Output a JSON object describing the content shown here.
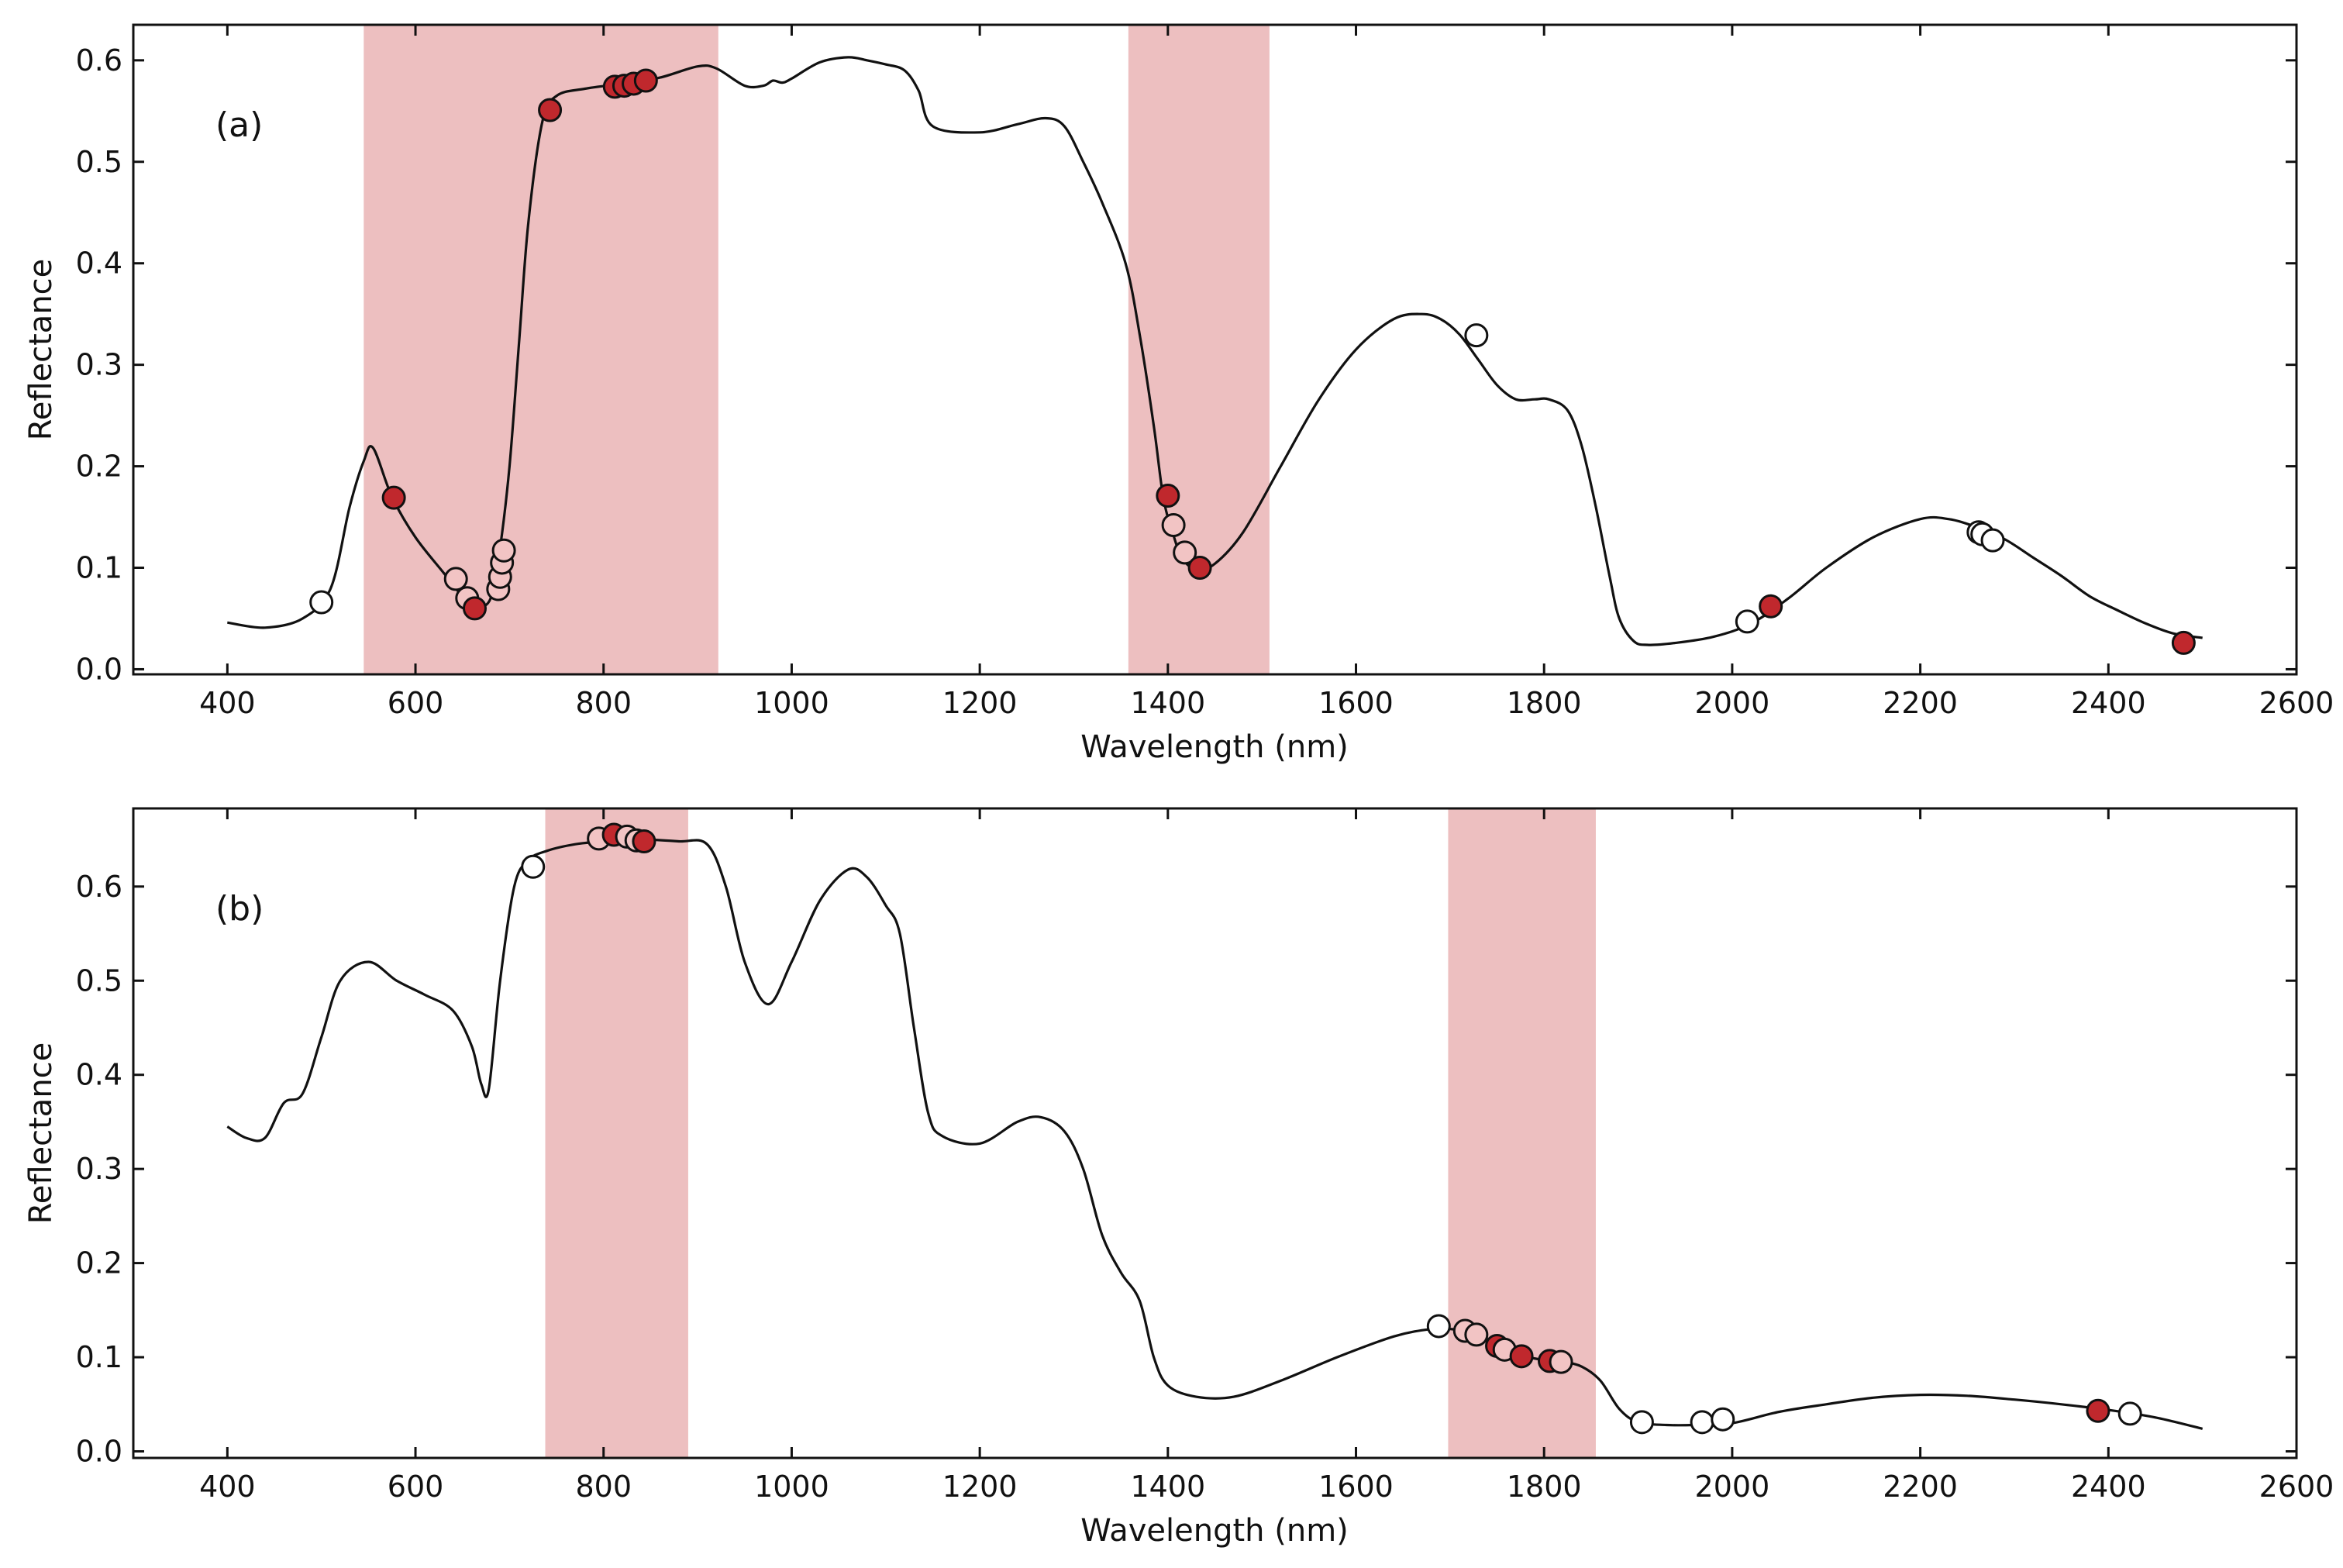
{
  "chart_data": [
    {
      "type": "line",
      "panel_label": "(a)",
      "xlabel": "Wavelength (nm)",
      "ylabel": "Reflectance",
      "xlim": [
        300,
        2600
      ],
      "ylim": [
        -0.005,
        0.635
      ],
      "xticks": [
        400,
        600,
        800,
        1000,
        1200,
        1400,
        1600,
        1800,
        2000,
        2200,
        2400,
        2600
      ],
      "yticks": [
        0.0,
        0.1,
        0.2,
        0.3,
        0.4,
        0.5,
        0.6
      ],
      "xtick_labels": [
        "400",
        "600",
        "800",
        "1000",
        "1200",
        "1400",
        "1600",
        "1800",
        "2000",
        "2200",
        "2400",
        "2600"
      ],
      "ytick_labels": [
        "0.0",
        "0.1",
        "0.2",
        "0.3",
        "0.4",
        "0.5",
        "0.6"
      ],
      "band_color": "#edbfc0",
      "highlight_bands": [
        [
          545,
          922
        ],
        [
          1358,
          1508
        ]
      ],
      "colors": {
        "dark": "#c0282d",
        "light": "#f2c4c4",
        "white": "#ffffff",
        "line": "#111111"
      },
      "series": [
        {
          "name": "spectrum",
          "x": [
            400,
            440,
            480,
            510,
            530,
            545,
            555,
            575,
            600,
            630,
            650,
            665,
            680,
            690,
            700,
            710,
            720,
            735,
            750,
            780,
            820,
            860,
            900,
            920,
            950,
            970,
            980,
            990,
            1000,
            1030,
            1060,
            1080,
            1100,
            1120,
            1135,
            1150,
            1200,
            1240,
            1270,
            1290,
            1310,
            1330,
            1355,
            1370,
            1385,
            1395,
            1405,
            1415,
            1430,
            1450,
            1480,
            1520,
            1560,
            1600,
            1640,
            1670,
            1690,
            1710,
            1730,
            1750,
            1770,
            1790,
            1805,
            1825,
            1840,
            1855,
            1870,
            1880,
            1895,
            1910,
            1940,
            1980,
            2020,
            2060,
            2100,
            2150,
            2200,
            2230,
            2260,
            2290,
            2320,
            2350,
            2380,
            2410,
            2440,
            2470,
            2500
          ],
          "y": [
            0.046,
            0.041,
            0.05,
            0.08,
            0.16,
            0.205,
            0.218,
            0.17,
            0.13,
            0.095,
            0.072,
            0.062,
            0.07,
            0.12,
            0.2,
            0.32,
            0.44,
            0.54,
            0.565,
            0.572,
            0.577,
            0.583,
            0.594,
            0.592,
            0.575,
            0.575,
            0.58,
            0.578,
            0.582,
            0.598,
            0.603,
            0.6,
            0.596,
            0.59,
            0.57,
            0.535,
            0.529,
            0.537,
            0.543,
            0.535,
            0.5,
            0.46,
            0.4,
            0.33,
            0.24,
            0.17,
            0.135,
            0.11,
            0.098,
            0.104,
            0.135,
            0.2,
            0.265,
            0.315,
            0.345,
            0.35,
            0.345,
            0.33,
            0.305,
            0.28,
            0.266,
            0.266,
            0.266,
            0.255,
            0.22,
            0.16,
            0.09,
            0.05,
            0.028,
            0.024,
            0.026,
            0.032,
            0.045,
            0.07,
            0.1,
            0.13,
            0.148,
            0.148,
            0.14,
            0.128,
            0.11,
            0.092,
            0.072,
            0.058,
            0.045,
            0.035,
            0.031
          ]
        }
      ],
      "markers": [
        {
          "x": 500,
          "y": 0.066,
          "c": "white"
        },
        {
          "x": 577,
          "y": 0.169,
          "c": "dark"
        },
        {
          "x": 643,
          "y": 0.089,
          "c": "light"
        },
        {
          "x": 655,
          "y": 0.07,
          "c": "light"
        },
        {
          "x": 663,
          "y": 0.06,
          "c": "dark"
        },
        {
          "x": 688,
          "y": 0.079,
          "c": "light"
        },
        {
          "x": 690,
          "y": 0.091,
          "c": "light"
        },
        {
          "x": 692,
          "y": 0.105,
          "c": "light"
        },
        {
          "x": 694,
          "y": 0.117,
          "c": "light"
        },
        {
          "x": 743,
          "y": 0.551,
          "c": "dark"
        },
        {
          "x": 812,
          "y": 0.574,
          "c": "dark"
        },
        {
          "x": 822,
          "y": 0.575,
          "c": "dark"
        },
        {
          "x": 832,
          "y": 0.577,
          "c": "dark"
        },
        {
          "x": 845,
          "y": 0.58,
          "c": "dark"
        },
        {
          "x": 1400,
          "y": 0.171,
          "c": "dark"
        },
        {
          "x": 1406,
          "y": 0.142,
          "c": "light"
        },
        {
          "x": 1418,
          "y": 0.115,
          "c": "light"
        },
        {
          "x": 1434,
          "y": 0.1,
          "c": "dark"
        },
        {
          "x": 1728,
          "y": 0.329,
          "c": "white"
        },
        {
          "x": 2016,
          "y": 0.047,
          "c": "white"
        },
        {
          "x": 2041,
          "y": 0.062,
          "c": "dark"
        },
        {
          "x": 2262,
          "y": 0.135,
          "c": "white"
        },
        {
          "x": 2266,
          "y": 0.133,
          "c": "white"
        },
        {
          "x": 2277,
          "y": 0.127,
          "c": "white"
        },
        {
          "x": 2480,
          "y": 0.026,
          "c": "dark"
        }
      ]
    },
    {
      "type": "line",
      "panel_label": "(b)",
      "xlabel": "Wavelength (nm)",
      "ylabel": "Reflectance",
      "xlim": [
        300,
        2600
      ],
      "ylim": [
        -0.007,
        0.683
      ],
      "xticks": [
        400,
        600,
        800,
        1000,
        1200,
        1400,
        1600,
        1800,
        2000,
        2200,
        2400,
        2600
      ],
      "yticks": [
        0.0,
        0.1,
        0.2,
        0.3,
        0.4,
        0.5,
        0.6
      ],
      "xtick_labels": [
        "400",
        "600",
        "800",
        "1000",
        "1200",
        "1400",
        "1600",
        "1800",
        "2000",
        "2200",
        "2400",
        "2600"
      ],
      "ytick_labels": [
        "0.0",
        "0.1",
        "0.2",
        "0.3",
        "0.4",
        "0.5",
        "0.6"
      ],
      "band_color": "#edbfc0",
      "highlight_bands": [
        [
          738,
          890
        ],
        [
          1698,
          1855
        ]
      ],
      "colors": {
        "dark": "#c0282d",
        "light": "#f2c4c4",
        "white": "#ffffff",
        "line": "#111111"
      },
      "series": [
        {
          "name": "spectrum",
          "x": [
            400,
            420,
            440,
            460,
            480,
            500,
            520,
            550,
            580,
            610,
            640,
            660,
            670,
            678,
            690,
            705,
            720,
            740,
            770,
            800,
            840,
            880,
            910,
            930,
            950,
            975,
            1000,
            1030,
            1060,
            1080,
            1100,
            1115,
            1130,
            1145,
            1160,
            1200,
            1240,
            1265,
            1290,
            1310,
            1330,
            1350,
            1370,
            1385,
            1400,
            1430,
            1470,
            1520,
            1580,
            1640,
            1680,
            1700,
            1720,
            1740,
            1760,
            1780,
            1800,
            1820,
            1840,
            1860,
            1880,
            1900,
            1930,
            1960,
            2000,
            2050,
            2100,
            2150,
            2200,
            2250,
            2300,
            2350,
            2400,
            2450,
            2500
          ],
          "y": [
            0.345,
            0.333,
            0.333,
            0.37,
            0.38,
            0.44,
            0.5,
            0.52,
            0.5,
            0.485,
            0.468,
            0.43,
            0.39,
            0.385,
            0.5,
            0.6,
            0.628,
            0.638,
            0.645,
            0.648,
            0.65,
            0.648,
            0.645,
            0.6,
            0.52,
            0.475,
            0.52,
            0.585,
            0.618,
            0.61,
            0.58,
            0.55,
            0.45,
            0.36,
            0.335,
            0.327,
            0.35,
            0.355,
            0.34,
            0.3,
            0.23,
            0.19,
            0.16,
            0.1,
            0.07,
            0.058,
            0.058,
            0.075,
            0.1,
            0.122,
            0.13,
            0.13,
            0.127,
            0.119,
            0.109,
            0.101,
            0.097,
            0.095,
            0.09,
            0.075,
            0.045,
            0.031,
            0.028,
            0.028,
            0.03,
            0.042,
            0.05,
            0.057,
            0.06,
            0.059,
            0.055,
            0.05,
            0.044,
            0.036,
            0.024
          ]
        }
      ],
      "markers": [
        {
          "x": 725,
          "y": 0.621,
          "c": "white"
        },
        {
          "x": 795,
          "y": 0.651,
          "c": "light"
        },
        {
          "x": 811,
          "y": 0.655,
          "c": "dark"
        },
        {
          "x": 825,
          "y": 0.653,
          "c": "light"
        },
        {
          "x": 835,
          "y": 0.649,
          "c": "light"
        },
        {
          "x": 843,
          "y": 0.648,
          "c": "dark"
        },
        {
          "x": 1688,
          "y": 0.133,
          "c": "white"
        },
        {
          "x": 1716,
          "y": 0.128,
          "c": "light"
        },
        {
          "x": 1728,
          "y": 0.124,
          "c": "light"
        },
        {
          "x": 1750,
          "y": 0.112,
          "c": "dark"
        },
        {
          "x": 1758,
          "y": 0.108,
          "c": "light"
        },
        {
          "x": 1776,
          "y": 0.101,
          "c": "dark"
        },
        {
          "x": 1806,
          "y": 0.096,
          "c": "dark"
        },
        {
          "x": 1818,
          "y": 0.095,
          "c": "light"
        },
        {
          "x": 1904,
          "y": 0.031,
          "c": "white"
        },
        {
          "x": 1968,
          "y": 0.031,
          "c": "white"
        },
        {
          "x": 1990,
          "y": 0.034,
          "c": "white"
        },
        {
          "x": 2389,
          "y": 0.043,
          "c": "dark"
        },
        {
          "x": 2423,
          "y": 0.04,
          "c": "white"
        }
      ]
    }
  ]
}
